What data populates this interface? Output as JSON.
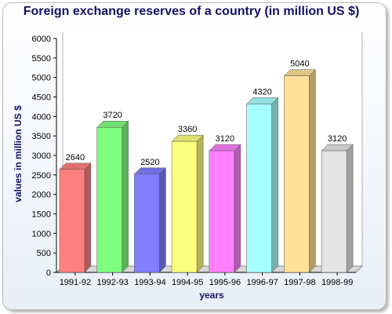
{
  "chart_data": {
    "type": "bar",
    "title": "Foreign exchange reserves of a country (in million US $)",
    "xlabel": "years",
    "ylabel": "values in million US $",
    "categories": [
      "1991-92",
      "1992-93",
      "1993-94",
      "1994-95",
      "1995-96",
      "1996-97",
      "1997-98",
      "1998-99"
    ],
    "values": [
      2640,
      3720,
      2520,
      3360,
      3120,
      4320,
      5040,
      3120
    ],
    "data_labels": [
      "2640",
      "3720",
      "2520",
      "3360",
      "3120",
      "4320",
      "5040",
      "3120"
    ],
    "colors": [
      "#ff7f7f",
      "#7fff7f",
      "#7f7fff",
      "#ffff7f",
      "#ff7fff",
      "#a6ffff",
      "#ffe199",
      "#e4e4e4"
    ],
    "ylim": [
      0,
      6000
    ],
    "yticks": [
      0,
      500,
      1000,
      1500,
      2000,
      2500,
      3000,
      3500,
      4000,
      4500,
      5000,
      5500,
      6000
    ],
    "ytick_labels": [
      "0",
      "500",
      "1000",
      "1500",
      "2000",
      "2500",
      "3000",
      "3500",
      "4000",
      "4500",
      "5000",
      "5500",
      "6000"
    ],
    "grid": false,
    "style": "3d"
  }
}
